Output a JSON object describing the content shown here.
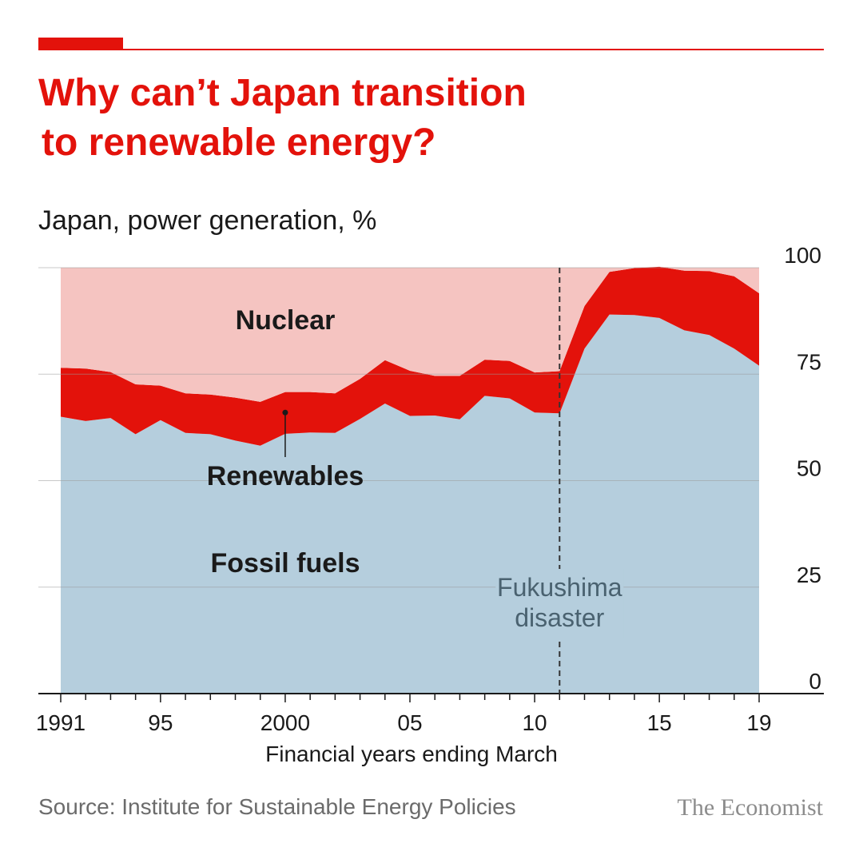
{
  "header": {
    "title_line1": "Why can’t Japan transition",
    "title_line2": "to renewable energy?",
    "subtitle": "Japan, power generation, %"
  },
  "footer": {
    "source": "Source: Institute for Sustainable Energy Policies",
    "brand": "The Economist"
  },
  "colors": {
    "accent": "#E3120B",
    "fossil": "#B5CEDD",
    "renewables": "#E3120B",
    "nuclear": "#F5C4C1"
  },
  "chart_data": {
    "type": "area",
    "stacked": true,
    "x": [
      1991,
      1992,
      1993,
      1994,
      1995,
      1996,
      1997,
      1998,
      1999,
      2000,
      2001,
      2002,
      2003,
      2004,
      2005,
      2006,
      2007,
      2008,
      2009,
      2010,
      2011,
      2012,
      2013,
      2014,
      2015,
      2016,
      2017,
      2018,
      2019
    ],
    "x_ticks": [
      {
        "x": 1991,
        "label": "1991"
      },
      {
        "x": 1995,
        "label": "95"
      },
      {
        "x": 2000,
        "label": "2000"
      },
      {
        "x": 2005,
        "label": "05"
      },
      {
        "x": 2010,
        "label": "10"
      },
      {
        "x": 2015,
        "label": "15"
      },
      {
        "x": 2019,
        "label": "19"
      }
    ],
    "y_ticks": [
      0,
      25,
      50,
      75,
      100
    ],
    "ylim": [
      0,
      100
    ],
    "xlabel": "Financial years ending March",
    "ylabel": "",
    "series": [
      {
        "name": "Fossil fuels",
        "color": "#B5CEDD",
        "values": [
          65,
          64,
          64.7,
          60.9,
          64.2,
          61.2,
          60.9,
          59.4,
          58.2,
          61,
          61.3,
          61.2,
          64.5,
          68.1,
          65.2,
          65.3,
          64.4,
          69.9,
          69.3,
          66,
          65.8,
          81,
          89,
          88.9,
          88.2,
          85.3,
          84.2,
          81,
          77
        ]
      },
      {
        "name": "Renewables",
        "color": "#E3120B",
        "values": [
          11.5,
          12.3,
          10.8,
          11.7,
          8.1,
          9.3,
          9.3,
          10.1,
          10.3,
          9.8,
          9.5,
          9.3,
          9.4,
          10.2,
          10.6,
          9.3,
          10.2,
          8.5,
          8.8,
          9.4,
          9.9,
          10,
          10,
          11,
          12,
          14,
          15,
          17,
          17
        ]
      },
      {
        "name": "Nuclear",
        "color": "#F5C4C1",
        "values": [
          23.5,
          23.7,
          24.5,
          27.4,
          27.7,
          29.5,
          29.8,
          30.5,
          31.5,
          29.2,
          29.2,
          29.5,
          26.1,
          21.7,
          24.2,
          25.4,
          25.4,
          21.6,
          21.9,
          24.6,
          24.3,
          9,
          1,
          0.1,
          0,
          0.7,
          0.8,
          2,
          6
        ]
      }
    ],
    "labels": [
      {
        "text": "Nuclear"
      },
      {
        "text": "Renewables"
      },
      {
        "text": "Fossil fuels"
      }
    ],
    "annotation": {
      "x": 2011,
      "line1": "Fukushima",
      "line2": "disaster"
    },
    "renewables_pointer": {
      "x": 2000,
      "y": 66
    }
  }
}
